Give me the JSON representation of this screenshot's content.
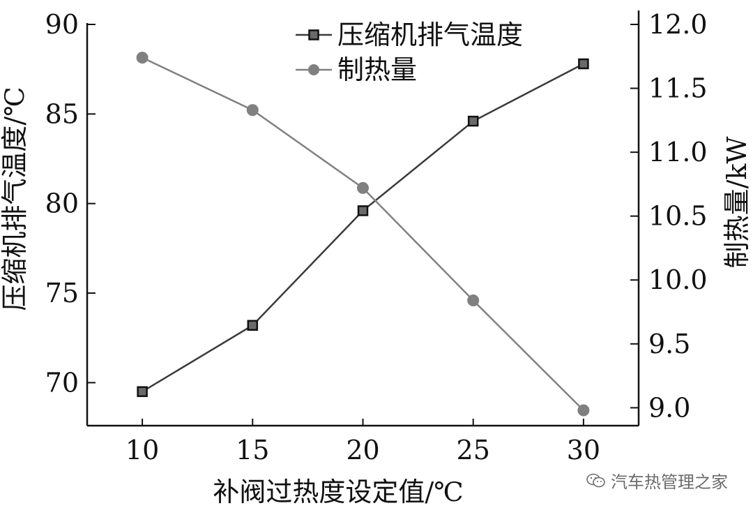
{
  "chart_data": {
    "type": "line",
    "xlabel": "补阀过热度设定值/℃",
    "ylabel_left": "压缩机排气温度/℃",
    "ylabel_right": "制热量/kW",
    "x": [
      10,
      15,
      20,
      25,
      30
    ],
    "x_ticks": [
      10,
      15,
      20,
      25,
      30
    ],
    "x_tick_labels": [
      "10",
      "15",
      "20",
      "25",
      "30"
    ],
    "xlim": [
      7.5,
      32.5
    ],
    "ylim_left": [
      67.6,
      90
    ],
    "y_ticks_left": [
      70,
      75,
      80,
      85,
      90
    ],
    "y_tick_labels_left": [
      "70",
      "75",
      "80",
      "85",
      "90"
    ],
    "ylim_right": [
      8.86,
      12.0
    ],
    "y_ticks_right": [
      9.0,
      9.5,
      10.0,
      10.5,
      11.0,
      11.5,
      12.0
    ],
    "y_tick_labels_right": [
      "9.0",
      "9.5",
      "10.0",
      "10.5",
      "11.0",
      "11.5",
      "12.0"
    ],
    "legend_position": "top-right",
    "grid": false,
    "series": [
      {
        "name": "压缩机排气温度",
        "axis": "left",
        "marker": "square",
        "color": "#3a3a3a",
        "values": [
          69.5,
          73.2,
          79.6,
          84.6,
          87.8
        ]
      },
      {
        "name": "制热量",
        "axis": "right",
        "marker": "circle",
        "color": "#808080",
        "values": [
          11.74,
          11.33,
          10.72,
          9.84,
          8.98
        ]
      }
    ]
  },
  "watermark": {
    "text": "汽车热管理之家",
    "icon": "wechat-icon"
  }
}
